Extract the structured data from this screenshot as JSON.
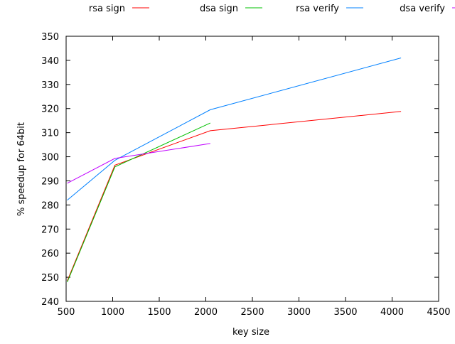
{
  "chart_data": {
    "type": "line",
    "title": "",
    "xlabel": "key size",
    "ylabel": "% speedup for 64bit",
    "xlim": [
      500,
      4500
    ],
    "ylim": [
      240,
      350
    ],
    "xticks": [
      500,
      1000,
      1500,
      2000,
      2500,
      3000,
      3500,
      4000,
      4500
    ],
    "yticks": [
      240,
      250,
      260,
      270,
      280,
      290,
      300,
      310,
      320,
      330,
      340,
      350
    ],
    "grid": false,
    "legend_position": "top",
    "series": [
      {
        "name": "rsa sign",
        "color": "#ff0000",
        "points": [
          [
            512,
            248.5
          ],
          [
            1024,
            296.5
          ],
          [
            2048,
            310.8
          ],
          [
            4096,
            318.8
          ]
        ]
      },
      {
        "name": "dsa sign",
        "color": "#00c000",
        "points": [
          [
            512,
            248.0
          ],
          [
            1024,
            295.8
          ],
          [
            2048,
            314.0
          ]
        ]
      },
      {
        "name": "rsa verify",
        "color": "#0080ff",
        "points": [
          [
            512,
            282.0
          ],
          [
            1024,
            298.5
          ],
          [
            2048,
            319.5
          ],
          [
            4096,
            341.0
          ]
        ]
      },
      {
        "name": "dsa verify",
        "color": "#c000ff",
        "points": [
          [
            512,
            289.0
          ],
          [
            1024,
            299.3
          ],
          [
            2048,
            305.5
          ]
        ]
      }
    ]
  }
}
